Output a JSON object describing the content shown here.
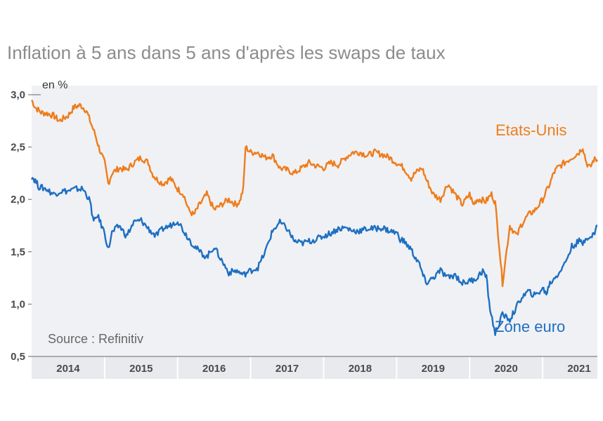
{
  "chart_data": {
    "type": "line",
    "title": "Inflation à 5 ans dans 5 ans d'après les swaps de taux",
    "ylabel": "en %",
    "source": "Source : Refinitiv",
    "ylim": [
      0.5,
      3.0
    ],
    "yticks": [
      "3,0",
      "2,5",
      "2,0",
      "1,5",
      "1,0",
      "0,5"
    ],
    "ytick_values": [
      3.0,
      2.5,
      2.0,
      1.5,
      1.0,
      0.5
    ],
    "xlim": [
      2013.5,
      2021.25
    ],
    "xtick_labels": [
      "2014",
      "2015",
      "2016",
      "2017",
      "2018",
      "2019",
      "2020",
      "2021"
    ],
    "xtick_positions": [
      2014,
      2015,
      2016,
      2017,
      2018,
      2019,
      2020,
      2021
    ],
    "xbounds": [
      2013.5,
      2014.5,
      2015.5,
      2016.5,
      2017.5,
      2018.5,
      2019.5,
      2020.5
    ],
    "series": [
      {
        "name": "Etats-Unis",
        "color": "#ee7d1c",
        "x": [
          2013.5,
          2013.55,
          2013.63,
          2013.72,
          2013.8,
          2013.88,
          2014.0,
          2014.08,
          2014.17,
          2014.25,
          2014.3,
          2014.37,
          2014.42,
          2014.5,
          2014.55,
          2014.6,
          2014.7,
          2014.8,
          2014.9,
          2015.0,
          2015.1,
          2015.15,
          2015.2,
          2015.3,
          2015.4,
          2015.5,
          2015.58,
          2015.65,
          2015.72,
          2015.8,
          2015.9,
          2016.0,
          2016.1,
          2016.2,
          2016.3,
          2016.35,
          2016.4,
          2016.43,
          2016.5,
          2016.6,
          2016.7,
          2016.8,
          2016.9,
          2017.0,
          2017.1,
          2017.2,
          2017.3,
          2017.4,
          2017.5,
          2017.6,
          2017.7,
          2017.8,
          2017.9,
          2018.0,
          2018.1,
          2018.2,
          2018.3,
          2018.4,
          2018.5,
          2018.6,
          2018.7,
          2018.75,
          2018.85,
          2018.9,
          2019.0,
          2019.1,
          2019.2,
          2019.3,
          2019.4,
          2019.5,
          2019.55,
          2019.6,
          2019.65,
          2019.72,
          2019.8,
          2019.85,
          2019.9,
          2019.95,
          2020.05,
          2020.15,
          2020.2,
          2020.3,
          2020.4,
          2020.5,
          2020.6,
          2020.65,
          2020.7,
          2020.8,
          2020.9,
          2021.0,
          2021.05,
          2021.1,
          2021.15,
          2021.2,
          2021.25
        ],
        "values": [
          2.95,
          2.88,
          2.83,
          2.82,
          2.8,
          2.75,
          2.8,
          2.88,
          2.9,
          2.85,
          2.75,
          2.62,
          2.5,
          2.35,
          2.15,
          2.25,
          2.3,
          2.28,
          2.35,
          2.4,
          2.35,
          2.25,
          2.2,
          2.15,
          2.2,
          2.1,
          2.05,
          1.9,
          1.85,
          1.95,
          2.05,
          1.9,
          1.95,
          2.0,
          1.95,
          1.98,
          2.1,
          2.5,
          2.45,
          2.45,
          2.4,
          2.42,
          2.3,
          2.28,
          2.25,
          2.3,
          2.35,
          2.32,
          2.3,
          2.35,
          2.33,
          2.4,
          2.45,
          2.45,
          2.42,
          2.45,
          2.43,
          2.4,
          2.35,
          2.3,
          2.2,
          2.25,
          2.3,
          2.2,
          2.05,
          2.0,
          2.15,
          2.05,
          1.95,
          2.05,
          1.95,
          2.0,
          2.0,
          1.98,
          2.05,
          1.97,
          1.6,
          1.2,
          1.75,
          1.65,
          1.75,
          1.85,
          1.9,
          2.0,
          2.15,
          2.25,
          2.3,
          2.35,
          2.4,
          2.45,
          2.5,
          2.35,
          2.3,
          2.38,
          2.38
        ]
      },
      {
        "name": "Zone euro",
        "color": "#1d6fc2",
        "x": [
          2013.5,
          2013.55,
          2013.6,
          2013.7,
          2013.8,
          2013.9,
          2014.0,
          2014.1,
          2014.2,
          2014.25,
          2014.3,
          2014.35,
          2014.4,
          2014.5,
          2014.55,
          2014.6,
          2014.7,
          2014.8,
          2014.9,
          2015.0,
          2015.1,
          2015.2,
          2015.3,
          2015.4,
          2015.5,
          2015.6,
          2015.7,
          2015.8,
          2015.9,
          2016.0,
          2016.1,
          2016.2,
          2016.3,
          2016.4,
          2016.5,
          2016.6,
          2016.7,
          2016.75,
          2016.8,
          2016.9,
          2017.0,
          2017.1,
          2017.2,
          2017.3,
          2017.4,
          2017.5,
          2017.6,
          2017.7,
          2017.8,
          2017.9,
          2018.0,
          2018.1,
          2018.2,
          2018.3,
          2018.4,
          2018.5,
          2018.55,
          2018.6,
          2018.7,
          2018.75,
          2018.8,
          2018.85,
          2018.9,
          2019.0,
          2019.1,
          2019.2,
          2019.3,
          2019.4,
          2019.5,
          2019.6,
          2019.68,
          2019.73,
          2019.78,
          2019.85,
          2019.95,
          2020.05,
          2020.15,
          2020.2,
          2020.3,
          2020.4,
          2020.5,
          2020.55,
          2020.6,
          2020.7,
          2020.8,
          2020.9,
          2021.0,
          2021.05,
          2021.1,
          2021.15,
          2021.2,
          2021.25
        ],
        "values": [
          2.22,
          2.18,
          2.12,
          2.1,
          2.05,
          2.08,
          2.08,
          2.1,
          2.1,
          2.05,
          1.98,
          1.78,
          1.85,
          1.68,
          1.52,
          1.68,
          1.75,
          1.65,
          1.78,
          1.8,
          1.72,
          1.65,
          1.72,
          1.75,
          1.8,
          1.68,
          1.58,
          1.5,
          1.45,
          1.55,
          1.42,
          1.3,
          1.32,
          1.28,
          1.32,
          1.35,
          1.5,
          1.6,
          1.7,
          1.78,
          1.72,
          1.6,
          1.58,
          1.6,
          1.62,
          1.65,
          1.68,
          1.72,
          1.73,
          1.7,
          1.7,
          1.72,
          1.72,
          1.73,
          1.7,
          1.68,
          1.62,
          1.6,
          1.52,
          1.45,
          1.4,
          1.3,
          1.2,
          1.25,
          1.32,
          1.25,
          1.28,
          1.2,
          1.22,
          1.25,
          1.32,
          1.25,
          0.95,
          0.72,
          0.9,
          0.85,
          0.98,
          1.05,
          1.12,
          1.08,
          1.15,
          1.1,
          1.2,
          1.28,
          1.38,
          1.55,
          1.6,
          1.58,
          1.65,
          1.62,
          1.67,
          1.75
        ]
      }
    ]
  }
}
